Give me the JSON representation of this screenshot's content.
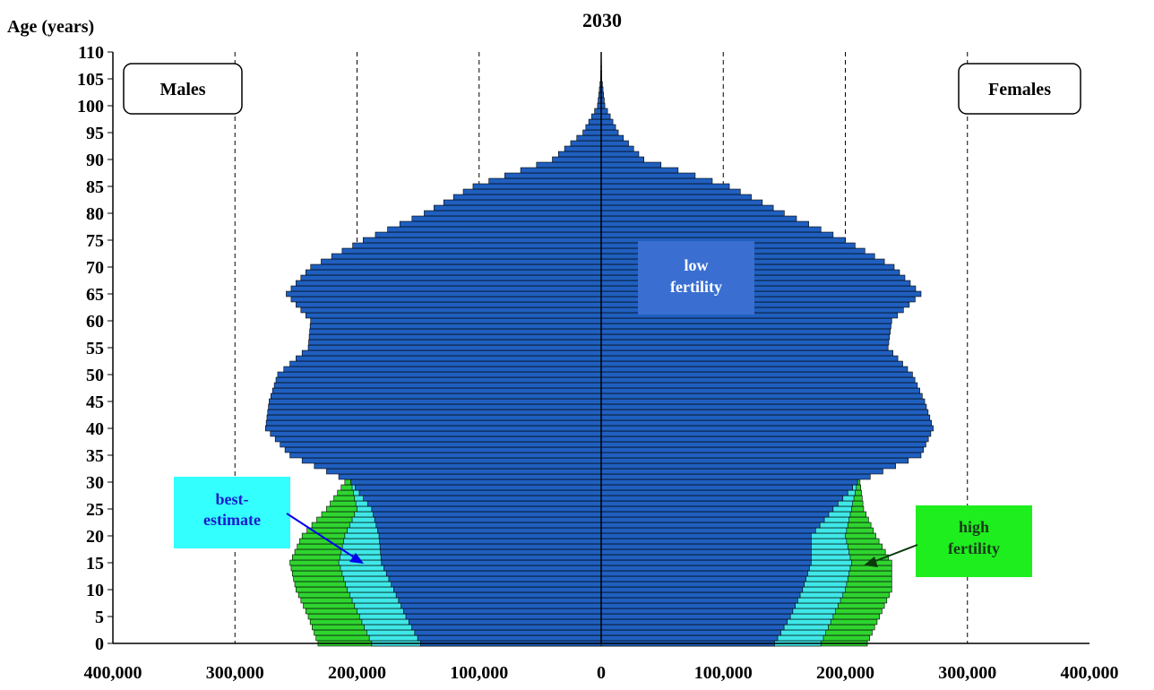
{
  "chart_data": {
    "type": "bar",
    "title": "2030",
    "ylabel": "Age (years)",
    "xlabel": "",
    "orientation": "horizontal-population-pyramid",
    "x_ticks": [
      "400,000",
      "300,000",
      "200,000",
      "100,000",
      "0",
      "100,000",
      "200,000",
      "300,000",
      "400,000"
    ],
    "xlim": [
      -400000,
      400000
    ],
    "ylim": [
      0,
      110
    ],
    "y_ticks": [
      "0",
      "5",
      "10",
      "15",
      "20",
      "25",
      "30",
      "35",
      "40",
      "45",
      "50",
      "55",
      "60",
      "65",
      "70",
      "75",
      "80",
      "85",
      "90",
      "95",
      "100",
      "105",
      "110"
    ],
    "grid": "vertical dashed at 100,000 intervals",
    "side_labels": {
      "left": "Males",
      "right": "Females"
    },
    "colors": {
      "low": "#1f5fbf",
      "best": "#3fe8e8",
      "high": "#2fd42f",
      "outline": "#000000"
    },
    "annotations": {
      "low": "low fertility",
      "best": "best-estimate",
      "high": "high fertility"
    },
    "series": [
      {
        "name": "low fertility",
        "ages": [
          0,
          5,
          10,
          15,
          20,
          25,
          30,
          35,
          40,
          45,
          50,
          55,
          60,
          65,
          70,
          75,
          80,
          85,
          90,
          95,
          100,
          105,
          110
        ],
        "males": [
          148000,
          160000,
          170000,
          180000,
          182000,
          188000,
          205000,
          255000,
          275000,
          272000,
          265000,
          240000,
          238000,
          258000,
          238000,
          195000,
          145000,
          105000,
          40000,
          15000,
          3000,
          500,
          0
        ],
        "females": [
          142000,
          155000,
          165000,
          172000,
          172000,
          190000,
          210000,
          262000,
          272000,
          265000,
          255000,
          235000,
          238000,
          262000,
          240000,
          200000,
          150000,
          105000,
          35000,
          14000,
          3000,
          500,
          0
        ]
      },
      {
        "name": "best-estimate",
        "ages": [
          0,
          5,
          10,
          15,
          20,
          25,
          30
        ],
        "males": [
          188000,
          198000,
          208000,
          215000,
          210000,
          200000,
          205000
        ],
        "females": [
          180000,
          190000,
          200000,
          205000,
          200000,
          205000,
          210000
        ]
      },
      {
        "name": "high fertility",
        "ages": [
          0,
          5,
          10,
          15,
          20,
          25,
          30
        ],
        "males": [
          232000,
          240000,
          250000,
          255000,
          245000,
          225000,
          210000
        ],
        "females": [
          218000,
          228000,
          238000,
          238000,
          225000,
          215000,
          212000
        ]
      }
    ]
  }
}
